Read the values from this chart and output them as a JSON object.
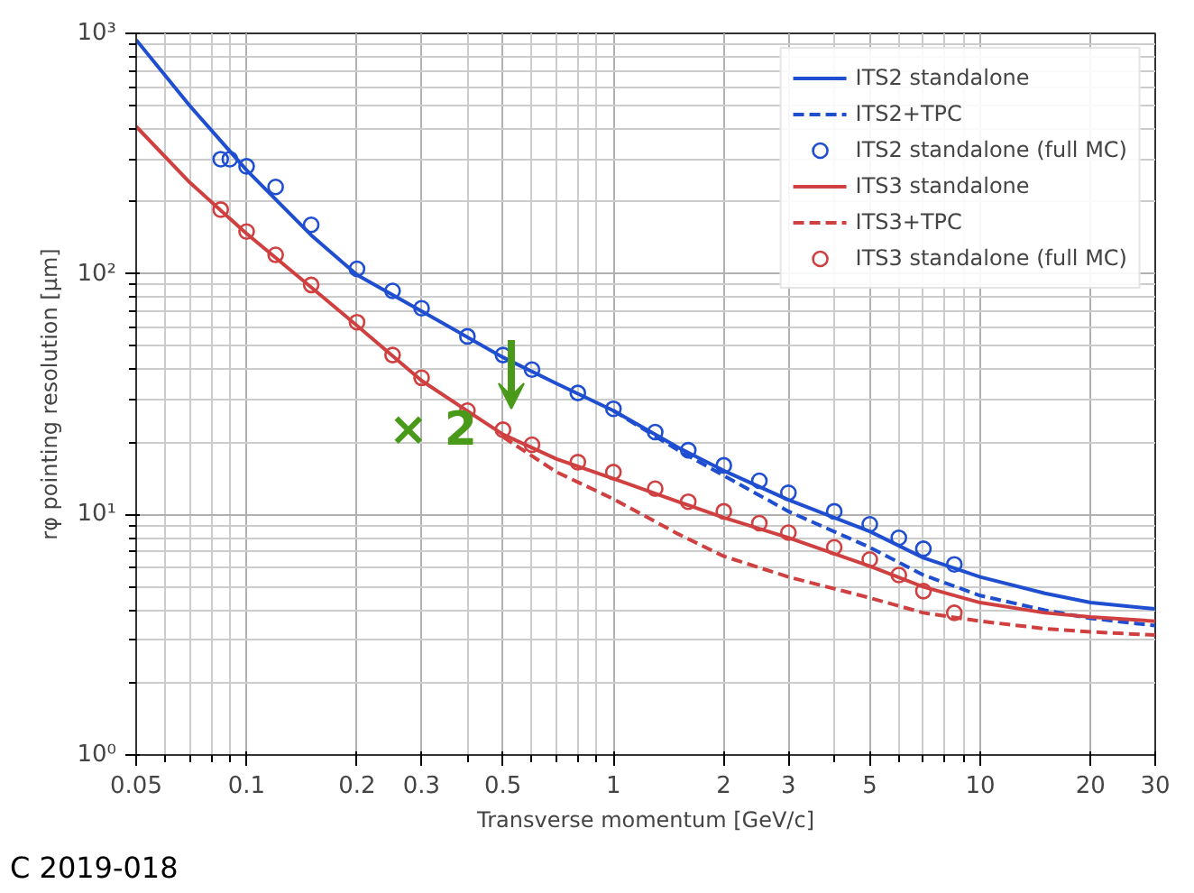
{
  "chart_data": {
    "type": "line",
    "xlabel": "Transverse momentum [GeV/c]",
    "ylabel": "rφ pointing resolution [μm]",
    "log": "xy",
    "grid": true,
    "legend": "top right",
    "xlim": [
      0.05,
      30
    ],
    "ylim": [
      1,
      1000
    ],
    "xticks": [
      0.05,
      0.1,
      0.2,
      0.3,
      0.5,
      1,
      2,
      3,
      5,
      10,
      20,
      30
    ],
    "yticks": [
      {
        "value": 1,
        "label": "10⁰"
      },
      {
        "value": 10,
        "label": "10¹"
      },
      {
        "value": 100,
        "label": "10²"
      },
      {
        "value": 1000,
        "label": "10³"
      }
    ],
    "annotations": [
      "× 2",
      "C 2019-018"
    ],
    "series": [
      {
        "name": "ITS2 standalone",
        "line_style": "solid",
        "color": "#1f4fd0",
        "x": [
          0.05,
          0.07,
          0.1,
          0.15,
          0.2,
          0.3,
          0.5,
          0.7,
          1,
          1.5,
          2,
          3,
          5,
          7,
          10,
          15,
          20,
          30
        ],
        "values": [
          940,
          500,
          270,
          145,
          99,
          70,
          45,
          35,
          27,
          19,
          15.2,
          11.5,
          8.5,
          6.6,
          5.5,
          4.7,
          4.3,
          4.05
        ]
      },
      {
        "name": "ITS2+TPC",
        "line_style": "dashed",
        "color": "#1f4fd0",
        "x": [
          1,
          1.5,
          2,
          3,
          5,
          7,
          10,
          15,
          20,
          30
        ],
        "values": [
          27,
          18.5,
          14.5,
          10.3,
          7.3,
          5.6,
          4.6,
          4.0,
          3.7,
          3.45
        ]
      },
      {
        "name": "ITS2 standalone (full MC)",
        "type": "scatter",
        "marker": "circle",
        "color": "#1f4fd0",
        "x": [
          0.085,
          0.09,
          0.1,
          0.12,
          0.15,
          0.2,
          0.25,
          0.3,
          0.4,
          0.5,
          0.6,
          0.8,
          1,
          1.3,
          1.6,
          2,
          2.5,
          3,
          4,
          5,
          6,
          7,
          8.5
        ],
        "values": [
          300,
          300,
          280,
          230,
          160,
          105,
          85,
          72,
          55,
          46,
          40,
          32,
          27.5,
          22,
          18.5,
          16,
          13.8,
          12.3,
          10.3,
          9.1,
          8,
          7.2,
          6.2
        ]
      },
      {
        "name": "ITS3 standalone",
        "line_style": "solid",
        "color": "#d04040",
        "x": [
          0.05,
          0.07,
          0.1,
          0.15,
          0.2,
          0.3,
          0.5,
          0.7,
          1,
          1.5,
          2,
          3,
          5,
          7,
          10,
          15,
          20,
          30
        ],
        "values": [
          410,
          240,
          147,
          88,
          61,
          36,
          21.5,
          17,
          14.1,
          11.3,
          9.7,
          8.0,
          6.1,
          5.0,
          4.3,
          3.9,
          3.75,
          3.6
        ]
      },
      {
        "name": "ITS3+TPC",
        "line_style": "dashed",
        "color": "#d04040",
        "x": [
          0.5,
          0.7,
          1,
          1.5,
          2,
          3,
          5,
          7,
          10,
          15,
          20,
          30
        ],
        "values": [
          21,
          15,
          11.6,
          8.3,
          6.7,
          5.5,
          4.5,
          3.9,
          3.6,
          3.35,
          3.25,
          3.15
        ]
      },
      {
        "name": "ITS3 standalone (full MC)",
        "type": "scatter",
        "marker": "circle",
        "color": "#d04040",
        "x": [
          0.085,
          0.1,
          0.12,
          0.15,
          0.2,
          0.25,
          0.3,
          0.4,
          0.5,
          0.6,
          0.8,
          1,
          1.3,
          1.6,
          2,
          2.5,
          3,
          4,
          5,
          6,
          7,
          8.5
        ],
        "values": [
          185,
          150,
          120,
          90,
          63,
          46,
          37,
          27,
          22.5,
          19.5,
          16.5,
          15,
          12.8,
          11.3,
          10.3,
          9.2,
          8.4,
          7.3,
          6.5,
          5.6,
          4.8,
          3.9
        ]
      }
    ]
  }
}
